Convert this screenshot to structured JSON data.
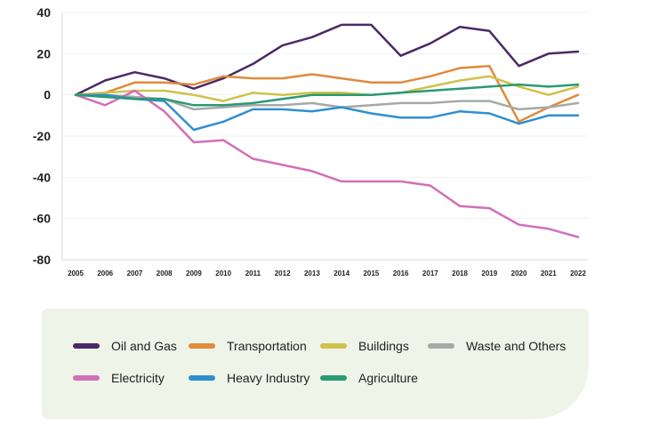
{
  "chart_data": {
    "type": "line",
    "title": "",
    "xlabel": "",
    "ylabel": "",
    "ylim": [
      -80,
      40
    ],
    "yticks": [
      40,
      20,
      0,
      -20,
      -40,
      -60,
      -80
    ],
    "grid": true,
    "legend_position": "bottom",
    "x": [
      "2005",
      "2006",
      "2007",
      "2008",
      "2009",
      "2010",
      "2011",
      "2012",
      "2013",
      "2014",
      "2015",
      "2016",
      "2017",
      "2018",
      "2019",
      "2020",
      "2021",
      "2022"
    ],
    "series": [
      {
        "name": "Oil and Gas",
        "color": "#4a2a66",
        "values": [
          0,
          7,
          11,
          8,
          3,
          8,
          15,
          24,
          28,
          34,
          34,
          19,
          25,
          33,
          31,
          14,
          20,
          21
        ]
      },
      {
        "name": "Transportation",
        "color": "#e08a3c",
        "values": [
          0,
          1,
          6,
          6,
          5,
          9,
          8,
          8,
          10,
          8,
          6,
          6,
          9,
          13,
          14,
          -13,
          -6,
          0
        ]
      },
      {
        "name": "Buildings",
        "color": "#cfc24a",
        "values": [
          0,
          1,
          2,
          2,
          0,
          -3,
          1,
          0,
          1,
          1,
          0,
          1,
          4,
          7,
          9,
          4,
          0,
          4
        ]
      },
      {
        "name": "Waste and Others",
        "color": "#a4aaa7",
        "values": [
          0,
          0,
          -1,
          -2,
          -7,
          -6,
          -5,
          -5,
          -4,
          -6,
          -5,
          -4,
          -4,
          -3,
          -3,
          -7,
          -6,
          -4
        ]
      },
      {
        "name": "Electricity",
        "color": "#d070b8",
        "values": [
          0,
          -5,
          2,
          -8,
          -23,
          -22,
          -31,
          -34,
          -37,
          -42,
          -42,
          -42,
          -44,
          -54,
          -55,
          -63,
          -65,
          -69
        ]
      },
      {
        "name": "Heavy Industry",
        "color": "#2f8fd0",
        "values": [
          0,
          0,
          -2,
          -3,
          -17,
          -13,
          -7,
          -7,
          -8,
          -6,
          -9,
          -11,
          -11,
          -8,
          -9,
          -14,
          -10,
          -10
        ]
      },
      {
        "name": "Agriculture",
        "color": "#2a9a74",
        "values": [
          0,
          -1,
          -2,
          -2,
          -5,
          -5,
          -4,
          -2,
          0,
          0,
          0,
          1,
          2,
          3,
          4,
          5,
          4,
          5
        ]
      }
    ]
  },
  "legend": [
    {
      "label": "Oil and Gas",
      "color": "#4a2a66"
    },
    {
      "label": "Transportation",
      "color": "#e08a3c"
    },
    {
      "label": "Buildings",
      "color": "#cfc24a"
    },
    {
      "label": "Waste and Others",
      "color": "#a4aaa7"
    },
    {
      "label": "Electricity",
      "color": "#d070b8"
    },
    {
      "label": "Heavy Industry",
      "color": "#2f8fd0"
    },
    {
      "label": "Agriculture",
      "color": "#2a9a74"
    }
  ]
}
